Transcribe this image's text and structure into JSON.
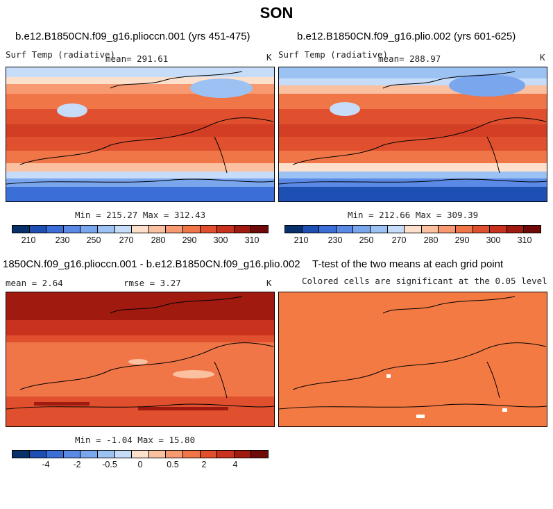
{
  "title": "SON",
  "colors": {
    "temp_scale": [
      "#08306b",
      "#1e50b4",
      "#3c6ed8",
      "#5a8ae6",
      "#7aa6ee",
      "#9cc2f4",
      "#c6dcf8",
      "#fde0cc",
      "#fbc0a0",
      "#f79a72",
      "#f07648",
      "#e0502e",
      "#c8321e",
      "#a01a10",
      "#700a08"
    ],
    "diff_scale": [
      "#08306b",
      "#1e50b4",
      "#3c6ed8",
      "#5a8ae6",
      "#7aa6ee",
      "#9cc2f4",
      "#c6dcf8",
      "#fde0cc",
      "#fbc0a0",
      "#f79a72",
      "#f07648",
      "#e0502e",
      "#c8321e",
      "#a01a10",
      "#700a08"
    ],
    "ttest_fill": "#f47a44"
  },
  "panels": {
    "top_left": {
      "title": "b.e12.B1850CN.f09_g16.pliocсn.001 (yrs 451-475)",
      "variable": "Surf Temp (radiative)",
      "mean": "mean= 291.61",
      "units": "K",
      "minmax": "Min = 215.27 Max = 312.43"
    },
    "top_right": {
      "title": "b.e12.B1850CN.f09_g16.plio.002 (yrs 601-625)",
      "variable": "Surf Temp (radiative)",
      "mean": "mean= 288.97",
      "units": "K",
      "minmax": "Min = 212.66 Max = 309.39"
    },
    "bottom_left": {
      "title": "1850CN.f09_g16.pliocсn.001 - b.e12.B1850CN.f09_g16.plio.002",
      "mean": "mean =     2.64",
      "rmse": "rmse =     3.27",
      "units": "K",
      "minmax": "Min =   -1.04 Max =   15.80"
    },
    "bottom_right": {
      "title": "T-test of the two means at each grid point",
      "subtitle": "Colored cells are significant at the 0.05 level"
    }
  },
  "colorbars": {
    "temp_labels": [
      "210",
      "230",
      "250",
      "270",
      "280",
      "290",
      "300",
      "310"
    ],
    "diff_labels": [
      "-4",
      "-2",
      "-0.5",
      "0",
      "0.5",
      "2",
      "4"
    ]
  }
}
